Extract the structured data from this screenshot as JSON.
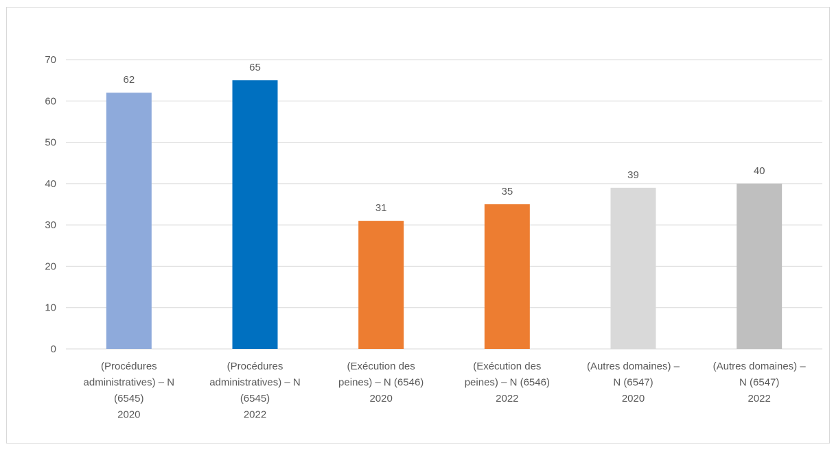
{
  "chart_data": {
    "type": "bar",
    "title": "",
    "xlabel": "",
    "ylabel": "",
    "ylim": [
      0,
      70
    ],
    "yticks": [
      0,
      10,
      20,
      30,
      40,
      50,
      60,
      70
    ],
    "grid": true,
    "legend": "none",
    "categories": [
      [
        "(Procédures",
        "administratives) – N",
        "(6545)",
        "2020"
      ],
      [
        "(Procédures",
        "administratives) – N",
        "(6545)",
        "2022"
      ],
      [
        "(Exécution des",
        "peines) – N (6546)",
        "2020"
      ],
      [
        "(Exécution des",
        "peines) – N (6546)",
        "2022"
      ],
      [
        "(Autres domaines) –",
        "N (6547)",
        "2020"
      ],
      [
        "(Autres domaines) –",
        "N (6547)",
        "2022"
      ]
    ],
    "values": [
      62,
      65,
      31,
      35,
      39,
      40
    ],
    "colors": [
      "#8eaadb",
      "#0070c0",
      "#ed7d31",
      "#ed7d31",
      "#d9d9d9",
      "#bfbfbf"
    ],
    "data_labels": true
  }
}
